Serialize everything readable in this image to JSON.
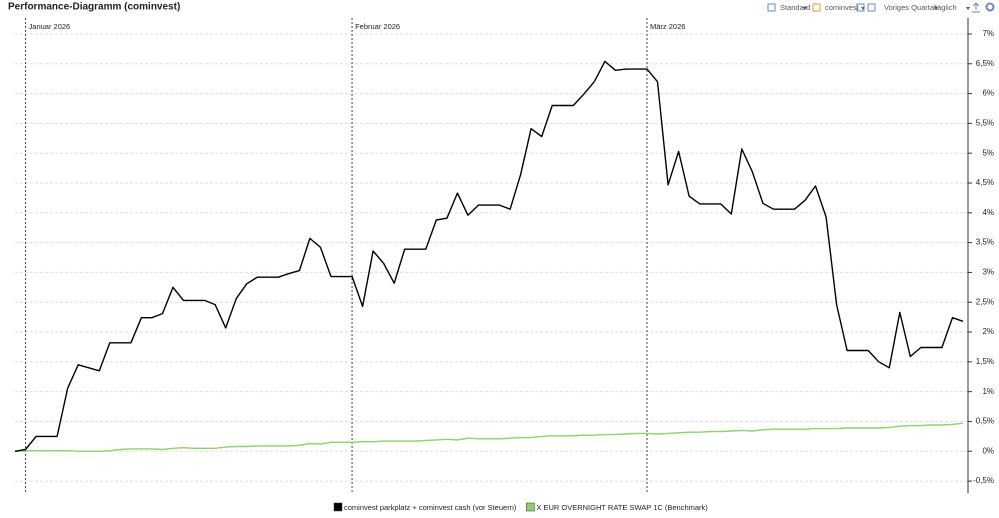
{
  "chart_data": {
    "type": "line",
    "title": "Performance-Diagramm (cominvest)",
    "toolbar": [
      "Standard",
      "cominvest",
      "Voriges Quartal",
      "täglich"
    ],
    "categories": [
      null,
      "Januar 2026",
      null,
      null,
      null,
      null,
      null,
      null,
      null,
      null,
      null,
      null,
      null,
      null,
      null,
      null,
      null,
      null,
      null,
      null,
      null,
      null,
      null,
      null,
      null,
      null,
      null,
      null,
      null,
      null,
      null,
      null,
      "Februar 2026",
      null,
      null,
      null,
      null,
      null,
      null,
      null,
      null,
      null,
      null,
      null,
      null,
      null,
      null,
      null,
      null,
      null,
      null,
      null,
      null,
      null,
      null,
      null,
      null,
      null,
      null,
      null,
      "März 2026",
      null,
      null,
      null,
      null,
      null,
      null,
      null,
      null,
      null,
      null,
      null,
      null,
      null,
      null,
      null,
      null,
      null,
      null,
      null,
      null,
      null,
      null,
      null,
      null,
      null,
      null,
      null,
      null,
      null,
      null
    ],
    "series": [
      {
        "name": "cominvest parkplatz + cominvest cash (vor Steuern)",
        "color": "#000000",
        "values": [
          0,
          0.03,
          0.25,
          0.25,
          0.25,
          1.06,
          1.45,
          1.4,
          1.35,
          1.82,
          1.82,
          1.82,
          2.24,
          2.24,
          2.31,
          2.75,
          2.53,
          2.53,
          2.53,
          2.46,
          2.07,
          2.56,
          2.81,
          2.92,
          2.92,
          2.92,
          2.98,
          3.03,
          3.57,
          3.42,
          2.93,
          2.93,
          2.93,
          2.43,
          3.36,
          3.15,
          2.82,
          3.39,
          3.39,
          3.39,
          3.88,
          3.91,
          4.33,
          3.96,
          4.13,
          4.13,
          4.13,
          4.06,
          4.64,
          5.41,
          5.28,
          5.8,
          5.8,
          5.8,
          5.99,
          6.2,
          6.54,
          6.39,
          6.41,
          6.41,
          6.41,
          6.2,
          4.47,
          5.03,
          4.28,
          4.15,
          4.15,
          4.15,
          3.98,
          5.07,
          4.69,
          4.16,
          4.06,
          4.06,
          4.06,
          4.21,
          4.45,
          3.93,
          2.46,
          1.69,
          1.69,
          1.69,
          1.5,
          1.4,
          2.33,
          1.59,
          1.74,
          1.74,
          1.74,
          2.24,
          2.18
        ]
      },
      {
        "name": "X EUR OVERNIGHT RATE SWAP 1C (Benchmark)",
        "color": "#8fd16a",
        "values": [
          0,
          0.01,
          0.01,
          0.01,
          0.01,
          0.01,
          0.0,
          0.0,
          0.0,
          0.01,
          0.03,
          0.04,
          0.04,
          0.04,
          0.03,
          0.05,
          0.06,
          0.05,
          0.05,
          0.05,
          0.07,
          0.08,
          0.08,
          0.09,
          0.09,
          0.09,
          0.09,
          0.1,
          0.13,
          0.12,
          0.15,
          0.15,
          0.15,
          0.16,
          0.16,
          0.17,
          0.17,
          0.17,
          0.17,
          0.18,
          0.19,
          0.2,
          0.19,
          0.22,
          0.21,
          0.21,
          0.21,
          0.22,
          0.23,
          0.23,
          0.25,
          0.26,
          0.26,
          0.26,
          0.27,
          0.27,
          0.28,
          0.28,
          0.29,
          0.3,
          0.3,
          0.29,
          0.3,
          0.31,
          0.32,
          0.32,
          0.33,
          0.33,
          0.34,
          0.35,
          0.34,
          0.36,
          0.37,
          0.37,
          0.37,
          0.37,
          0.38,
          0.38,
          0.38,
          0.39,
          0.39,
          0.39,
          0.39,
          0.4,
          0.42,
          0.43,
          0.43,
          0.44,
          0.44,
          0.45,
          0.47
        ]
      }
    ],
    "ylim": [
      -0.7,
      7.1
    ],
    "yticks": [
      {
        "value": -0.5,
        "label": "-0,5%"
      },
      {
        "value": 0,
        "label": "0%"
      },
      {
        "value": 0.5,
        "label": "0,5%"
      },
      {
        "value": 1,
        "label": "1%"
      },
      {
        "value": 1.5,
        "label": "1,5%"
      },
      {
        "value": 2,
        "label": "2%"
      },
      {
        "value": 2.5,
        "label": "2,5%"
      },
      {
        "value": 3,
        "label": "3%"
      },
      {
        "value": 3.5,
        "label": "3,5%"
      },
      {
        "value": 4,
        "label": "4%"
      },
      {
        "value": 4.5,
        "label": "4,5%"
      },
      {
        "value": 5,
        "label": "5%"
      },
      {
        "value": 5.5,
        "label": "5,5%"
      },
      {
        "value": 6,
        "label": "6%"
      },
      {
        "value": 6.5,
        "label": "6,5%"
      },
      {
        "value": 7,
        "label": "7%"
      }
    ],
    "grid": true
  }
}
